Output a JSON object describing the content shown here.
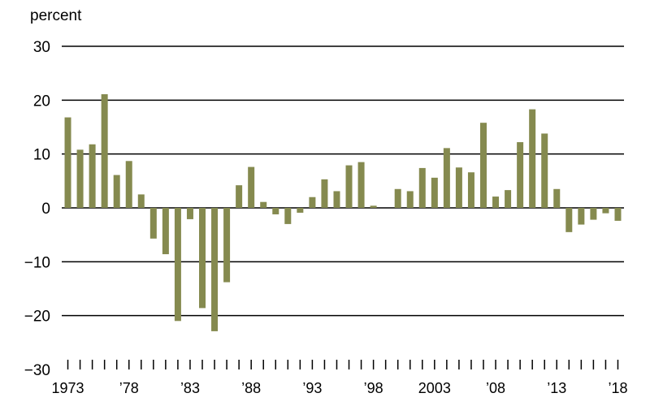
{
  "chart_data": {
    "type": "bar",
    "ylabel": "percent",
    "ylim": [
      -30,
      30
    ],
    "yticks": [
      30,
      20,
      10,
      0,
      -10,
      -20,
      -30
    ],
    "ytick_labels": [
      "30",
      "20",
      "10",
      "0",
      "−10",
      "−20",
      "−30"
    ],
    "x": [
      1973,
      1974,
      1975,
      1976,
      1977,
      1978,
      1979,
      1980,
      1981,
      1982,
      1983,
      1984,
      1985,
      1986,
      1987,
      1988,
      1989,
      1990,
      1991,
      1992,
      1993,
      1994,
      1995,
      1996,
      1997,
      1998,
      1999,
      2000,
      2001,
      2002,
      2003,
      2004,
      2005,
      2006,
      2007,
      2008,
      2009,
      2010,
      2011,
      2012,
      2013,
      2014,
      2015,
      2016,
      2017,
      2018
    ],
    "values": [
      16.8,
      10.8,
      11.8,
      21.1,
      6.1,
      8.7,
      2.5,
      -5.7,
      -8.6,
      -21.0,
      -2.1,
      -18.6,
      -22.9,
      -13.8,
      4.2,
      7.6,
      1.1,
      -1.2,
      -3.0,
      -0.9,
      2.0,
      5.3,
      3.1,
      7.9,
      8.5,
      0.4,
      0.0,
      3.5,
      3.1,
      7.4,
      5.6,
      11.1,
      7.5,
      6.6,
      15.8,
      2.1,
      3.3,
      12.2,
      18.3,
      13.8,
      3.5,
      -4.5,
      -3.1,
      -2.2,
      -1.0,
      -2.4
    ],
    "xtick_labels": [
      "1973",
      "’78",
      "’83",
      "’88",
      "’93",
      "’98",
      "2003",
      "’08",
      "’13",
      "’18"
    ],
    "xtick_years": [
      1973,
      1978,
      1983,
      1988,
      1993,
      1998,
      2003,
      2008,
      2013,
      2018
    ],
    "grid": true,
    "bar_color": "#858a4f"
  }
}
